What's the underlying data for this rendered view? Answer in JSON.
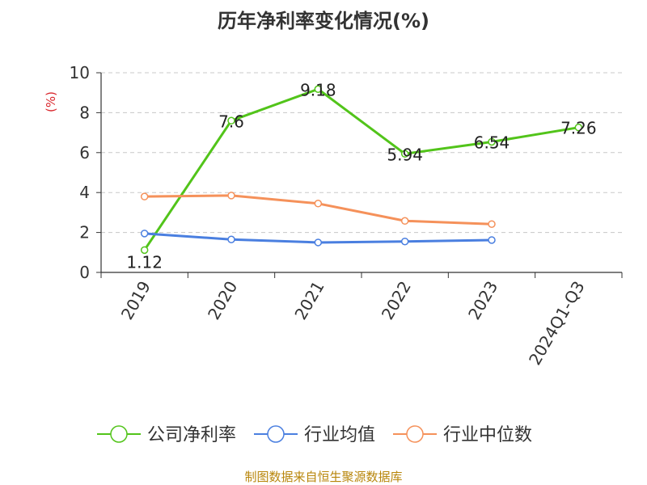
{
  "chart_data": {
    "type": "line",
    "title": "历年净利率变化情况(%)",
    "ylabel": "(%)",
    "xlabel": "",
    "categories": [
      "2019",
      "2020",
      "2021",
      "2022",
      "2023",
      "2024Q1-Q3"
    ],
    "yticks": [
      0,
      2,
      4,
      6,
      8,
      10
    ],
    "ylim": [
      0,
      10
    ],
    "grid": true,
    "legend_position": "bottom",
    "series": [
      {
        "name": "公司净利率",
        "values": [
          1.12,
          7.6,
          9.18,
          5.94,
          6.54,
          7.26
        ],
        "labels": [
          "1.12",
          "7.6",
          "9.18",
          "5.94",
          "6.54",
          "7.26"
        ],
        "color": "#52c41a"
      },
      {
        "name": "行业均值",
        "values": [
          1.95,
          1.65,
          1.5,
          1.55,
          1.62,
          null
        ],
        "color": "#4a7fe0"
      },
      {
        "name": "行业中位数",
        "values": [
          3.8,
          3.85,
          3.45,
          2.58,
          2.42,
          null
        ],
        "color": "#f5915a"
      }
    ]
  },
  "source": "制图数据来自恒生聚源数据库"
}
